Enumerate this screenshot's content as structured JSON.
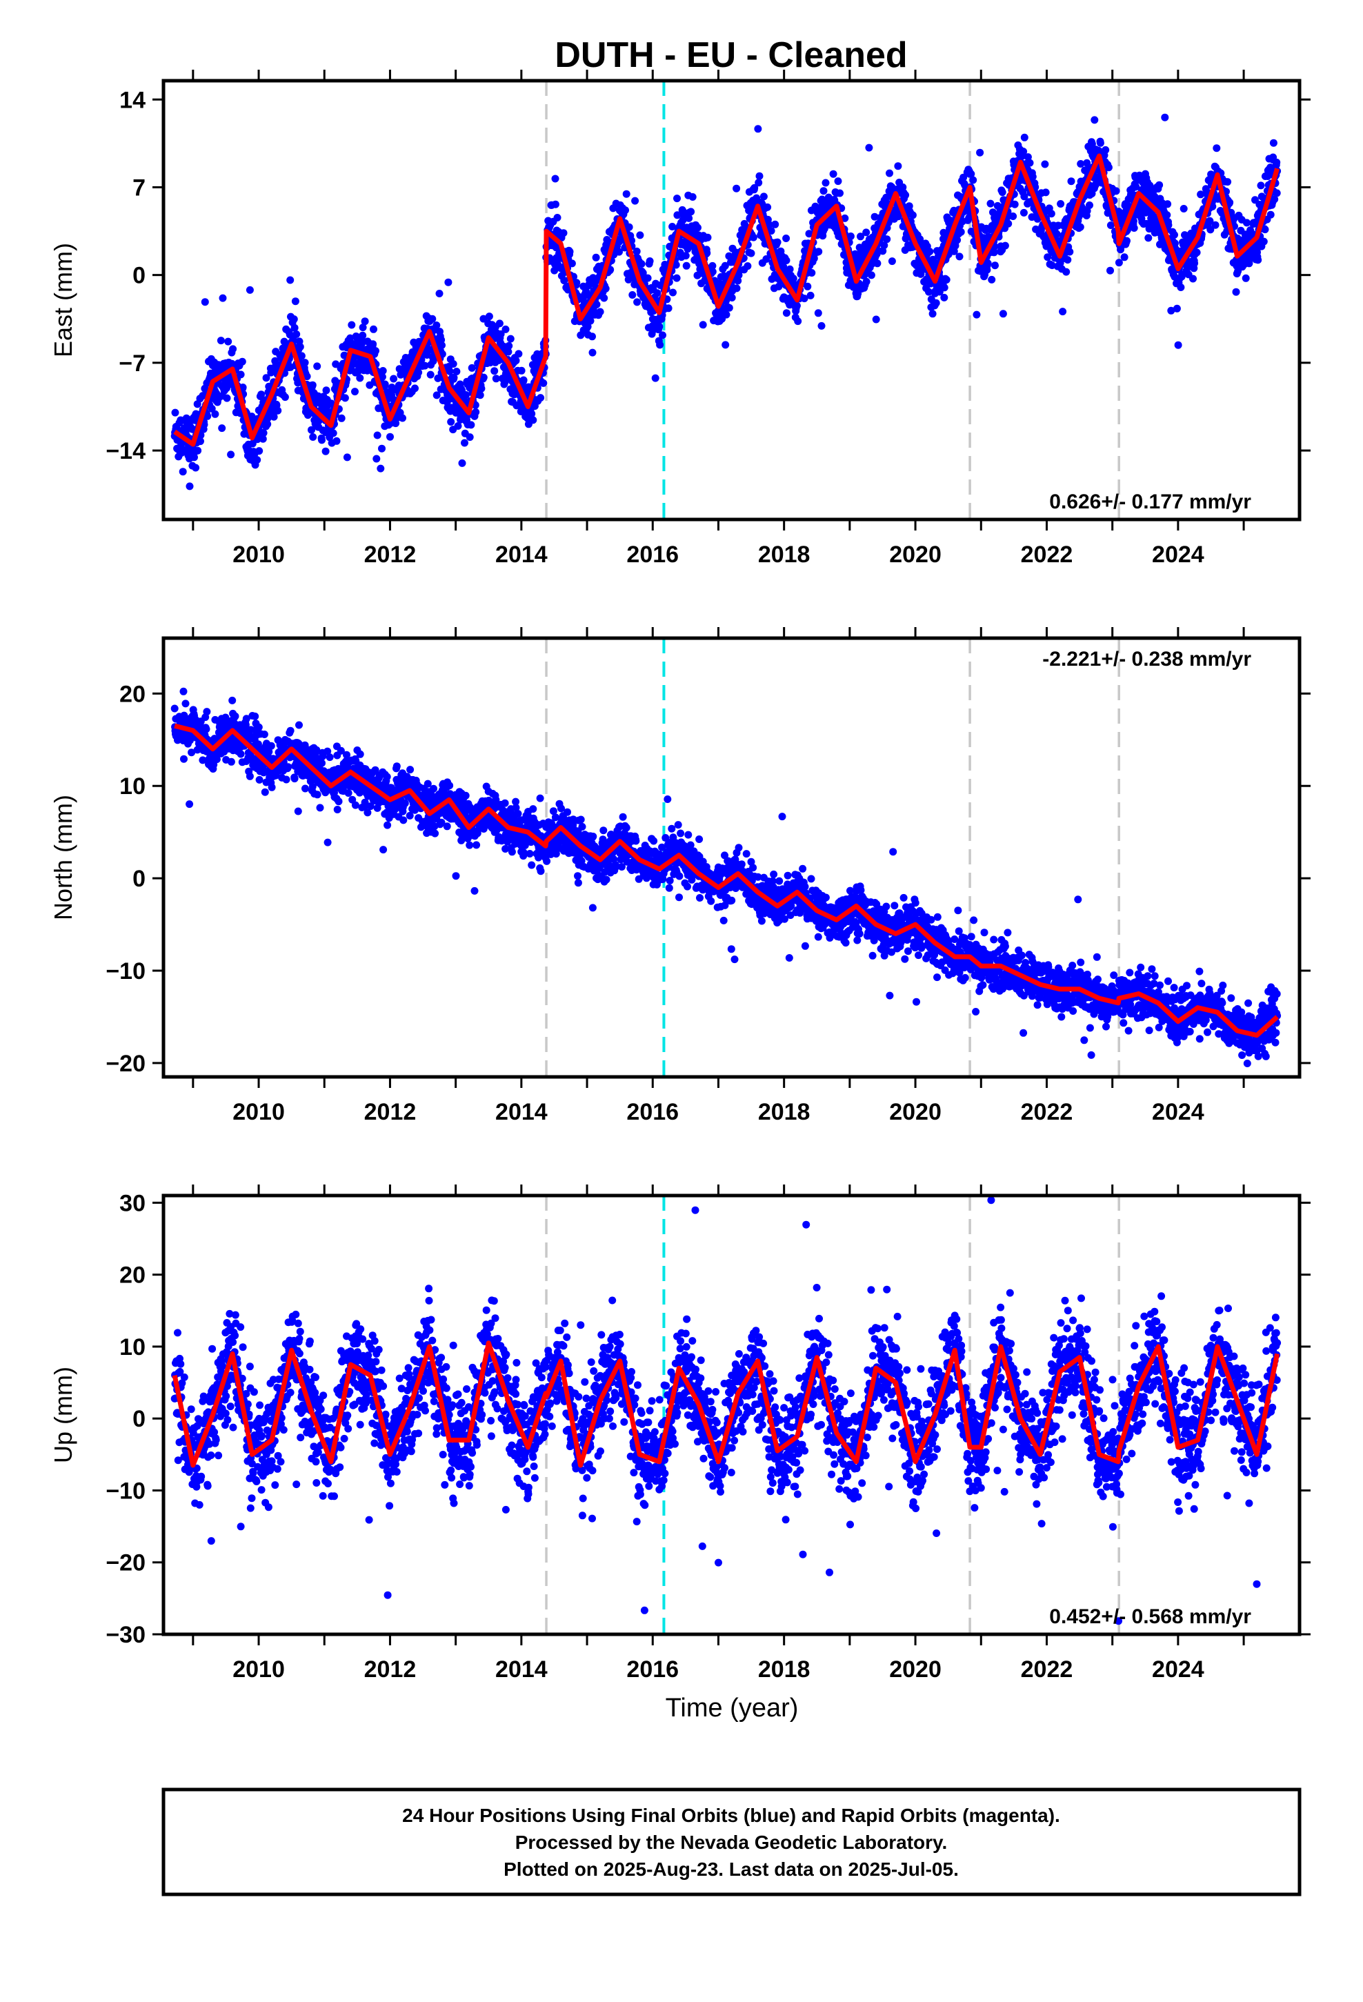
{
  "title": "DUTH  - EU - Cleaned",
  "colors": {
    "final_orbits": "#0000ff",
    "rapid_orbits": "#ff00ff",
    "model_fit": "#ff0000",
    "equipment_change": "#c8c8c8",
    "earthquake": "#00e5e5"
  },
  "x_ticks": [
    "2010",
    "2012",
    "2014",
    "2016",
    "2018",
    "2020",
    "2022",
    "2024"
  ],
  "x_axis_label": "Time (year)",
  "footer": {
    "line1": "24 Hour Positions Using Final Orbits (blue) and Rapid Orbits (magenta).",
    "line2": "Processed by the Nevada Geodetic Laboratory.",
    "line3": "Plotted on 2025-Aug-23. Last data on 2025-Jul-05."
  },
  "chart_data": [
    {
      "type": "scatter",
      "component": "east",
      "ylabel": "East (mm)",
      "xlim": [
        2008.55,
        2025.85
      ],
      "ylim": [
        -19.5,
        15.5
      ],
      "yticks": [
        14,
        7,
        0,
        -7,
        -14
      ],
      "ytick_labels": [
        "14",
        "7",
        "0",
        "−7",
        "−14"
      ],
      "rate_text": "0.626+/- 0.177 mm/yr",
      "rate_position": "bottom-right",
      "data_range_years": [
        2008.72,
        2025.51
      ],
      "equipment_change_years": [
        2014.38,
        2020.83,
        2023.1
      ],
      "earthquake_years": [
        2016.17
      ],
      "series": [
        {
          "kind": "model",
          "x": [
            2008.72,
            2009.0,
            2009.3,
            2009.6,
            2009.9,
            2010.2,
            2010.5,
            2010.8,
            2011.1,
            2011.4,
            2011.7,
            2012.0,
            2012.3,
            2012.6,
            2012.9,
            2013.2,
            2013.5,
            2013.8,
            2014.1,
            2014.37,
            2014.38,
            2014.6,
            2014.9,
            2015.2,
            2015.5,
            2015.8,
            2016.1,
            2016.4,
            2016.7,
            2017.0,
            2017.3,
            2017.6,
            2017.9,
            2018.2,
            2018.5,
            2018.8,
            2019.1,
            2019.4,
            2019.7,
            2020.0,
            2020.3,
            2020.6,
            2020.83,
            2021.0,
            2021.3,
            2021.6,
            2021.9,
            2022.2,
            2022.5,
            2022.8,
            2023.09,
            2023.1,
            2023.4,
            2023.7,
            2024.0,
            2024.3,
            2024.6,
            2024.9,
            2025.2,
            2025.51
          ],
          "y": [
            -12.5,
            -13.5,
            -8.5,
            -7.5,
            -13.0,
            -9.5,
            -5.5,
            -10.5,
            -12.0,
            -6.0,
            -6.5,
            -11.5,
            -8.0,
            -4.5,
            -9.0,
            -11.0,
            -5.0,
            -7.0,
            -10.5,
            -6.5,
            3.5,
            2.5,
            -3.5,
            -1.0,
            4.5,
            -0.5,
            -3.0,
            3.5,
            2.5,
            -2.5,
            1.0,
            5.5,
            0.5,
            -2.0,
            4.0,
            5.5,
            -0.5,
            2.5,
            6.5,
            2.5,
            -0.5,
            4.0,
            7.0,
            1.0,
            4.0,
            9.0,
            5.0,
            1.5,
            6.0,
            9.5,
            3.5,
            2.5,
            6.5,
            5.0,
            0.5,
            3.0,
            8.0,
            1.5,
            3.0,
            8.5
          ]
        }
      ]
    },
    {
      "type": "scatter",
      "component": "north",
      "ylabel": "North (mm)",
      "xlim": [
        2008.55,
        2025.85
      ],
      "ylim": [
        -21.5,
        26
      ],
      "yticks": [
        20,
        10,
        0,
        -10,
        -20
      ],
      "ytick_labels": [
        "20",
        "10",
        "0",
        "−10",
        "−20"
      ],
      "rate_text": "-2.221+/- 0.238 mm/yr",
      "rate_position": "top-right",
      "data_range_years": [
        2008.72,
        2025.51
      ],
      "equipment_change_years": [
        2014.38,
        2020.83,
        2023.1
      ],
      "earthquake_years": [
        2016.17
      ],
      "series": [
        {
          "kind": "model",
          "x": [
            2008.72,
            2009.0,
            2009.3,
            2009.6,
            2009.9,
            2010.2,
            2010.5,
            2010.8,
            2011.1,
            2011.4,
            2011.7,
            2012.0,
            2012.3,
            2012.6,
            2012.9,
            2013.2,
            2013.5,
            2013.8,
            2014.1,
            2014.37,
            2014.38,
            2014.6,
            2014.9,
            2015.2,
            2015.5,
            2015.8,
            2016.1,
            2016.4,
            2016.7,
            2017.0,
            2017.3,
            2017.6,
            2017.9,
            2018.2,
            2018.5,
            2018.8,
            2019.1,
            2019.4,
            2019.7,
            2020.0,
            2020.3,
            2020.6,
            2020.83,
            2021.0,
            2021.3,
            2021.6,
            2021.9,
            2022.2,
            2022.5,
            2022.8,
            2023.09,
            2023.1,
            2023.4,
            2023.7,
            2024.0,
            2024.3,
            2024.6,
            2024.9,
            2025.2,
            2025.51
          ],
          "y": [
            16.5,
            16.0,
            14.0,
            16.0,
            14.0,
            12.0,
            14.0,
            12.0,
            10.0,
            11.5,
            10.0,
            8.5,
            9.5,
            7.0,
            8.5,
            5.5,
            7.5,
            5.5,
            5.0,
            3.5,
            4.0,
            5.5,
            3.5,
            2.0,
            4.0,
            2.0,
            1.0,
            2.5,
            0.5,
            -1.0,
            0.5,
            -1.5,
            -3.0,
            -1.5,
            -3.5,
            -4.5,
            -3.0,
            -5.0,
            -6.0,
            -5.0,
            -7.0,
            -8.5,
            -8.5,
            -9.5,
            -9.5,
            -10.5,
            -11.5,
            -12.0,
            -12.0,
            -13.0,
            -13.5,
            -13.0,
            -12.5,
            -13.5,
            -15.5,
            -14.0,
            -14.5,
            -16.5,
            -17.0,
            -15.0
          ]
        }
      ]
    },
    {
      "type": "scatter",
      "component": "up",
      "ylabel": "Up (mm)",
      "xlim": [
        2008.55,
        2025.85
      ],
      "ylim": [
        -30,
        31
      ],
      "yticks": [
        30,
        20,
        10,
        0,
        -10,
        -20,
        -30
      ],
      "ytick_labels": [
        "30",
        "20",
        "10",
        "0",
        "−10",
        "−20",
        "−30"
      ],
      "rate_text": "0.452+/- 0.568 mm/yr",
      "rate_position": "bottom-right",
      "data_range_years": [
        2008.72,
        2025.51
      ],
      "equipment_change_years": [
        2014.38,
        2020.83,
        2023.1
      ],
      "earthquake_years": [
        2016.17
      ],
      "series": [
        {
          "kind": "model",
          "x": [
            2008.72,
            2009.0,
            2009.3,
            2009.6,
            2009.9,
            2010.2,
            2010.5,
            2010.8,
            2011.1,
            2011.4,
            2011.7,
            2012.0,
            2012.3,
            2012.6,
            2012.9,
            2013.2,
            2013.5,
            2013.8,
            2014.1,
            2014.37,
            2014.38,
            2014.6,
            2014.9,
            2015.2,
            2015.5,
            2015.8,
            2016.1,
            2016.4,
            2016.7,
            2017.0,
            2017.3,
            2017.6,
            2017.9,
            2018.2,
            2018.5,
            2018.8,
            2019.1,
            2019.4,
            2019.7,
            2020.0,
            2020.3,
            2020.6,
            2020.83,
            2021.0,
            2021.3,
            2021.6,
            2021.9,
            2022.2,
            2022.5,
            2022.8,
            2023.09,
            2023.1,
            2023.4,
            2023.7,
            2024.0,
            2024.3,
            2024.6,
            2024.9,
            2025.2,
            2025.51
          ],
          "y": [
            6.0,
            -6.5,
            0.5,
            9.0,
            -5.0,
            -3.0,
            9.5,
            1.0,
            -6.0,
            7.5,
            6.0,
            -5.0,
            1.5,
            10.0,
            -3.0,
            -3.0,
            10.5,
            2.5,
            -4.0,
            3.5,
            3.0,
            8.0,
            -6.5,
            2.5,
            8.0,
            -5.0,
            -6.0,
            7.0,
            2.0,
            -6.0,
            3.5,
            8.0,
            -4.5,
            -2.5,
            8.5,
            -2.0,
            -6.0,
            7.0,
            5.0,
            -6.0,
            0.5,
            9.5,
            -4.0,
            -4.0,
            10.0,
            0.0,
            -5.0,
            6.5,
            8.5,
            -5.0,
            -6.0,
            -4.5,
            4.5,
            10.0,
            -4.0,
            -3.0,
            10.0,
            2.5,
            -5.0,
            9.0
          ]
        }
      ]
    }
  ]
}
